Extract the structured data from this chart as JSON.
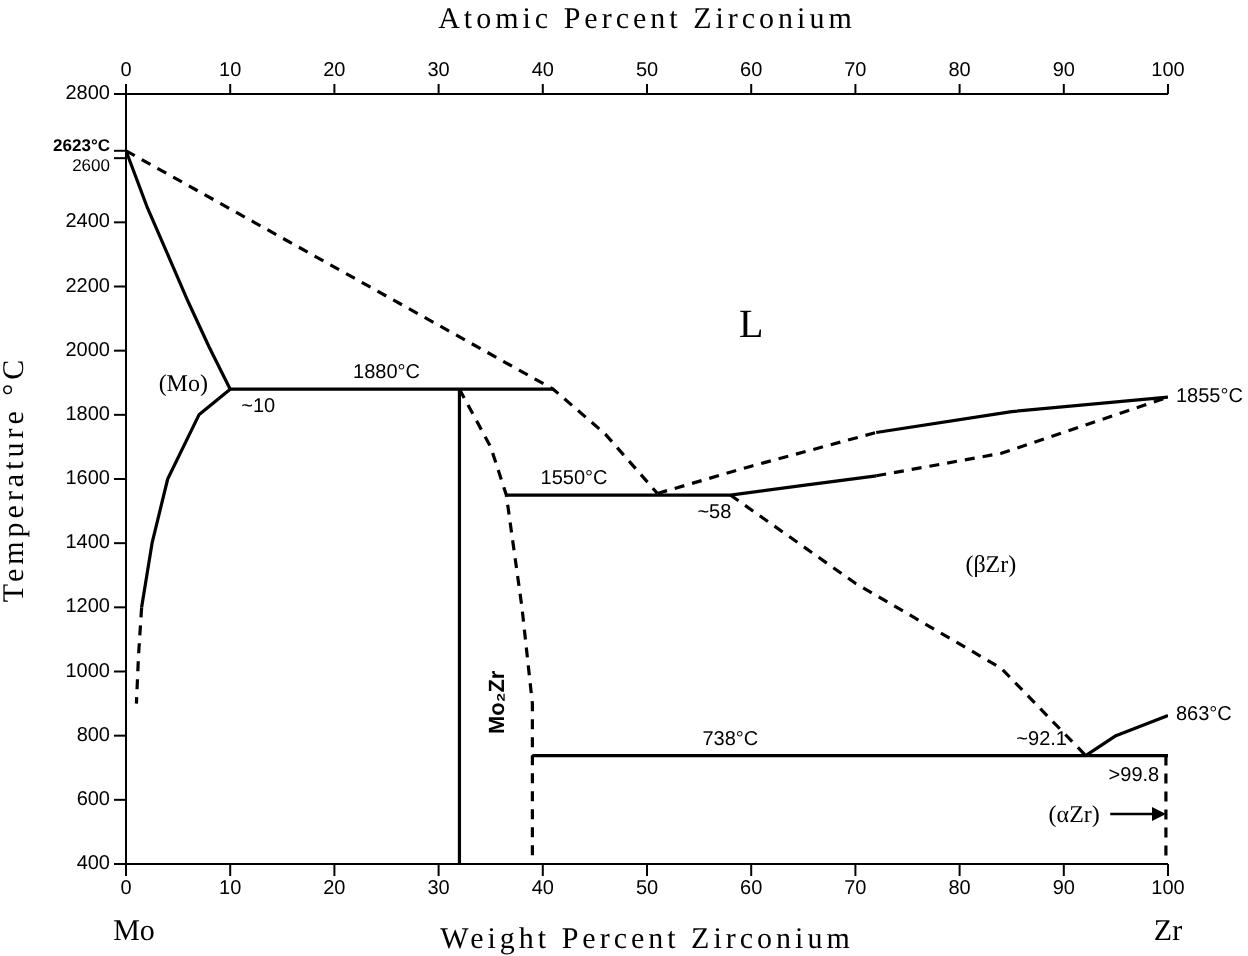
{
  "chart_data": {
    "type": "line",
    "xlabel": "Weight Percent Zirconium",
    "x2label": "Atomic Percent Zirconium",
    "ylabel": "Temperature °C",
    "xlim": [
      0,
      100
    ],
    "xticks": [
      0,
      10,
      20,
      30,
      40,
      50,
      60,
      70,
      80,
      90,
      100
    ],
    "x2lim": [
      0,
      100
    ],
    "x2ticks": [
      0,
      10,
      20,
      30,
      40,
      50,
      60,
      70,
      80,
      90,
      100
    ],
    "ylim": [
      400,
      2800
    ],
    "yticks": [
      400,
      600,
      800,
      1000,
      1200,
      1400,
      1600,
      1800,
      2000,
      2200,
      2400,
      {
        "value": 2600,
        "label": "2600"
      },
      {
        "value": 2623,
        "label": "2623°C"
      },
      2800
    ],
    "series": [
      {
        "color": "#000000",
        "line_style": "solid",
        "x": [
          0,
          2,
          4,
          6,
          8,
          10,
          41
        ],
        "values": [
          2623,
          2450,
          2300,
          2150,
          2010,
          1880,
          1880
        ]
      },
      {
        "color": "#000000",
        "line_style": "dashed",
        "x": [
          0,
          41,
          46,
          51
        ],
        "values": [
          2623,
          1880,
          1740,
          1555
        ]
      },
      {
        "color": "#000000",
        "line_style": "solid",
        "x": [
          10,
          7,
          4,
          2.5,
          1.5
        ],
        "values": [
          1880,
          1800,
          1600,
          1400,
          1200
        ]
      },
      {
        "color": "#000000",
        "line_style": "dashed",
        "x": [
          1.5,
          1.2,
          1
        ],
        "values": [
          1200,
          1050,
          900
        ]
      },
      {
        "color": "#000000",
        "line_style": "solid",
        "x": [
          32,
          32
        ],
        "values": [
          1880,
          400
        ]
      },
      {
        "color": "#000000",
        "line_style": "dashed",
        "x": [
          32,
          35,
          36.5,
          38,
          39,
          39,
          39
        ],
        "values": [
          1880,
          1700,
          1550,
          1200,
          900,
          738,
          400
        ]
      },
      {
        "color": "#000000",
        "line_style": "solid",
        "x": [
          36.5,
          58,
          65,
          72
        ],
        "values": [
          1550,
          1550,
          1580,
          1610
        ]
      },
      {
        "color": "#000000",
        "line_style": "dashed",
        "x": [
          51,
          60,
          72
        ],
        "values": [
          1555,
          1640,
          1745
        ]
      },
      {
        "color": "#000000",
        "line_style": "solid",
        "x": [
          72,
          85,
          100
        ],
        "values": [
          1745,
          1810,
          1855
        ]
      },
      {
        "color": "#000000",
        "line_style": "dashed",
        "x": [
          72,
          84,
          100
        ],
        "values": [
          1610,
          1680,
          1855
        ]
      },
      {
        "color": "#000000",
        "line_style": "dashed",
        "x": [
          58,
          70,
          84,
          92.1
        ],
        "values": [
          1550,
          1275,
          1010,
          738
        ]
      },
      {
        "color": "#000000",
        "line_style": "solid",
        "x": [
          39,
          100
        ],
        "values": [
          738,
          738
        ]
      },
      {
        "color": "#000000",
        "line_style": "solid",
        "x": [
          92.1,
          95,
          100
        ],
        "values": [
          738,
          800,
          863
        ]
      },
      {
        "color": "#000000",
        "line_style": "dashed",
        "x": [
          99.8,
          99.8
        ],
        "values": [
          738,
          400
        ]
      }
    ],
    "annotations": [
      {
        "text": "1855°C",
        "x": 100,
        "y": 1855
      },
      {
        "text": "863°C",
        "x": 100,
        "y": 863
      },
      {
        "text": "1880°C",
        "x": 25,
        "y": 1880
      },
      {
        "text": "~10",
        "x": 10,
        "y": 1880
      },
      {
        "text": "1550°C",
        "x": 43,
        "y": 1550
      },
      {
        "text": "~58",
        "x": 58,
        "y": 1550
      },
      {
        "text": "738°C",
        "x": 58,
        "y": 738
      },
      {
        "text": "~92.1",
        "x": 92.1,
        "y": 738
      },
      {
        "text": ">99.8",
        "x": 99.8,
        "y": 738
      },
      "(Mo)",
      "L",
      "(βZr)",
      "Mo₂Zr",
      "(αZr)",
      "Mo",
      "Zr"
    ]
  }
}
